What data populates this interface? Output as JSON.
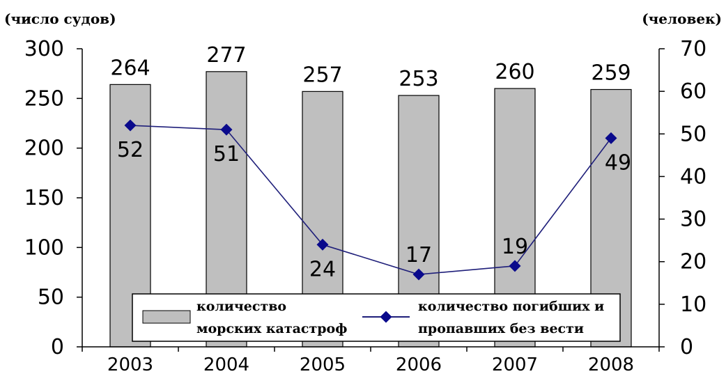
{
  "chart_data": {
    "type": "bar",
    "categories": [
      "2003",
      "2004",
      "2005",
      "2006",
      "2007",
      "2008"
    ],
    "series": [
      {
        "name": "количество морских катастроф",
        "kind": "bar",
        "axis": "left",
        "values": [
          264,
          277,
          257,
          253,
          260,
          259
        ],
        "legend_lines": [
          "количество",
          "морских катастроф"
        ]
      },
      {
        "name": "количество погибших и пропавших без вести",
        "kind": "line",
        "axis": "right",
        "values": [
          52,
          51,
          24,
          17,
          19,
          49
        ],
        "legend_lines": [
          "количество погибших и",
          "пропавших без вести"
        ]
      }
    ],
    "y_left": {
      "unit": "(число судов)",
      "range": [
        0,
        300
      ],
      "ticks": [
        0,
        50,
        100,
        150,
        200,
        250,
        300
      ]
    },
    "y_right": {
      "unit": "(человек)",
      "range": [
        0,
        70
      ],
      "ticks": [
        0,
        10,
        20,
        30,
        40,
        50,
        60,
        70
      ]
    },
    "grid": false,
    "legend_position": "bottom-center",
    "colors": {
      "bar_fill": "#bfbfbf",
      "bar_stroke": "#000000",
      "line": "#1f1f7a",
      "marker": "#0a0a8c"
    }
  }
}
